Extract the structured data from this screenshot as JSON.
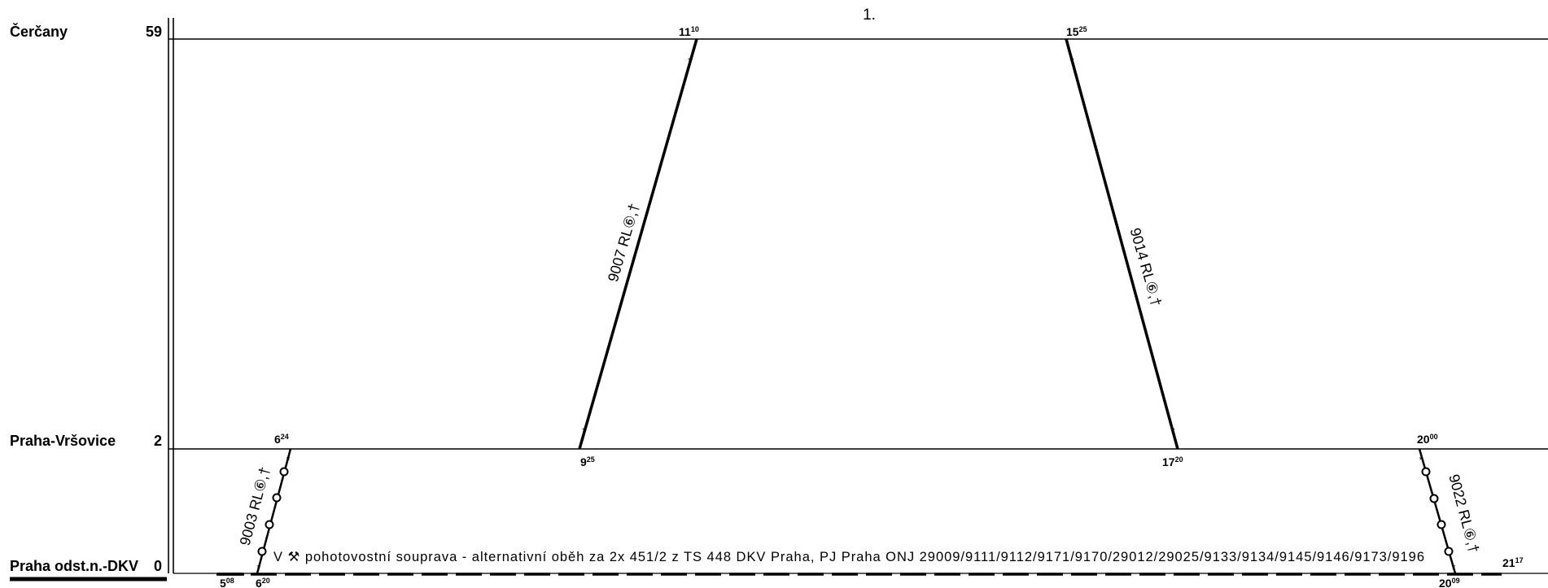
{
  "page_title": "1.",
  "stations": [
    {
      "name": "Čerčany",
      "km": "59"
    },
    {
      "name": "Praha-Vršovice",
      "km": "2"
    },
    {
      "name": "Praha odst.n.-DKV",
      "km": "0"
    }
  ],
  "trains": [
    {
      "label": "9007 RL⑥,†",
      "dep": {
        "h": "9",
        "m": "25"
      },
      "arr": {
        "h": "11",
        "m": "10"
      }
    },
    {
      "label": "9014 RL⑥,†",
      "dep": {
        "h": "15",
        "m": "25"
      },
      "arr": {
        "h": "17",
        "m": "20"
      }
    },
    {
      "label": "9003 RL⑥,†",
      "dep": {
        "h": "6",
        "m": "20"
      },
      "arr": {
        "h": "6",
        "m": "24"
      }
    },
    {
      "label": "9022 RL⑥,†",
      "dep": {
        "h": "20",
        "m": "00"
      },
      "arr": {
        "h": "20",
        "m": "09"
      }
    }
  ],
  "shunt_times": {
    "start": {
      "h": "5",
      "m": "08"
    },
    "end": {
      "h": "21",
      "m": "17"
    }
  },
  "note": "V ⚒ pohotovostní souprava - alternativní oběh za 2x 451/2 z TS 448 DKV Praha, PJ Praha ONJ 29009/9111/9112/9171/9170/29012/29025/9133/9134/9145/9146/9173/9196",
  "icons": {
    "train-end-mark": "asterisk-mark",
    "intermediate-stop": "circle-mark"
  }
}
